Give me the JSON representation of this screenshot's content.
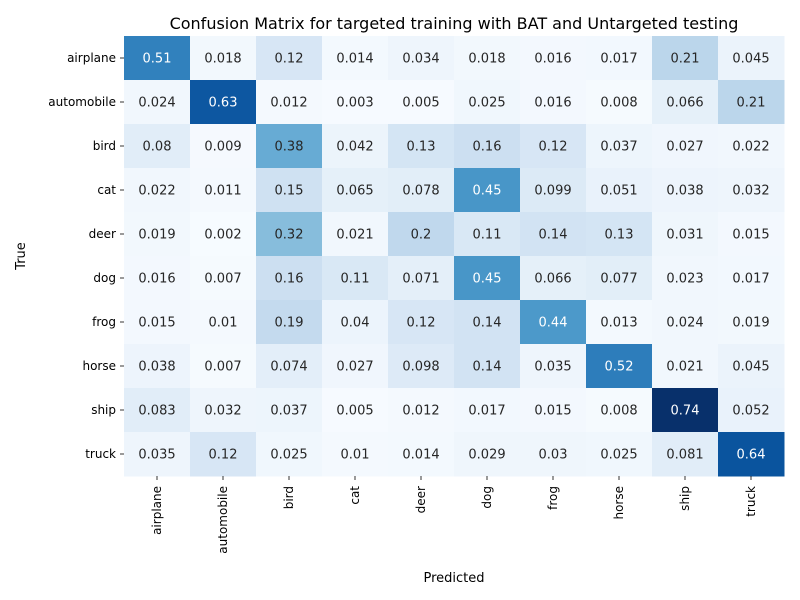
{
  "chart_data": {
    "type": "heatmap",
    "title": "Confusion Matrix for targeted training with BAT and Untargeted testing",
    "xlabel": "Predicted",
    "ylabel": "True",
    "x_categories": [
      "airplane",
      "automobile",
      "bird",
      "cat",
      "deer",
      "dog",
      "frog",
      "horse",
      "ship",
      "truck"
    ],
    "y_categories": [
      "airplane",
      "automobile",
      "bird",
      "cat",
      "deer",
      "dog",
      "frog",
      "horse",
      "ship",
      "truck"
    ],
    "colormap": "Blues",
    "value_range": [
      0,
      0.74
    ],
    "colorbar": false,
    "cell_labels": [
      [
        "0.51",
        "0.018",
        "0.12",
        "0.014",
        "0.034",
        "0.018",
        "0.016",
        "0.017",
        "0.21",
        "0.045"
      ],
      [
        "0.024",
        "0.63",
        "0.012",
        "0.003",
        "0.005",
        "0.025",
        "0.016",
        "0.008",
        "0.066",
        "0.21"
      ],
      [
        "0.08",
        "0.009",
        "0.38",
        "0.042",
        "0.13",
        "0.16",
        "0.12",
        "0.037",
        "0.027",
        "0.022"
      ],
      [
        "0.022",
        "0.011",
        "0.15",
        "0.065",
        "0.078",
        "0.45",
        "0.099",
        "0.051",
        "0.038",
        "0.032"
      ],
      [
        "0.019",
        "0.002",
        "0.32",
        "0.021",
        "0.2",
        "0.11",
        "0.14",
        "0.13",
        "0.031",
        "0.015"
      ],
      [
        "0.016",
        "0.007",
        "0.16",
        "0.11",
        "0.071",
        "0.45",
        "0.066",
        "0.077",
        "0.023",
        "0.017"
      ],
      [
        "0.015",
        "0.01",
        "0.19",
        "0.04",
        "0.12",
        "0.14",
        "0.44",
        "0.013",
        "0.024",
        "0.019"
      ],
      [
        "0.038",
        "0.007",
        "0.074",
        "0.027",
        "0.098",
        "0.14",
        "0.035",
        "0.52",
        "0.021",
        "0.045"
      ],
      [
        "0.083",
        "0.032",
        "0.037",
        "0.005",
        "0.012",
        "0.017",
        "0.015",
        "0.008",
        "0.74",
        "0.052"
      ],
      [
        "0.035",
        "0.12",
        "0.025",
        "0.01",
        "0.014",
        "0.029",
        "0.03",
        "0.025",
        "0.081",
        "0.64"
      ]
    ]
  }
}
